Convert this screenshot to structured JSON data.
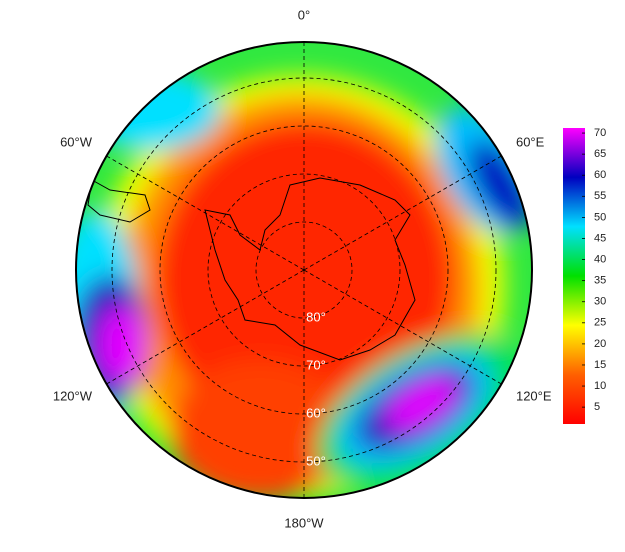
{
  "chart_data": {
    "type": "map",
    "lat_lim": [
      42.5,
      90
    ],
    "lat_ticks": [
      {
        "value": 80,
        "label": "80°"
      },
      {
        "value": 70,
        "label": "70°"
      },
      {
        "value": 60,
        "label": "60°"
      },
      {
        "value": 50,
        "label": "50°"
      }
    ],
    "lon_ticks": [
      {
        "value": 0,
        "label": "0°"
      },
      {
        "value": 60,
        "label": "60°E"
      },
      {
        "value": 120,
        "label": "120°E"
      },
      {
        "value": 180,
        "label": "180°W"
      },
      {
        "value": -120,
        "label": "120°W"
      },
      {
        "value": -60,
        "label": "60°W"
      }
    ],
    "colorbar": {
      "lim": [
        1,
        71.2
      ],
      "ticks": [
        5,
        10,
        15,
        20,
        25,
        30,
        35,
        40,
        45,
        50,
        55,
        60,
        65,
        70
      ],
      "colormap": [
        "#ff0000",
        "#ff6000",
        "#ffff00",
        "#00e000",
        "#00e0ff",
        "#0000c0",
        "#ff00ff"
      ]
    }
  }
}
